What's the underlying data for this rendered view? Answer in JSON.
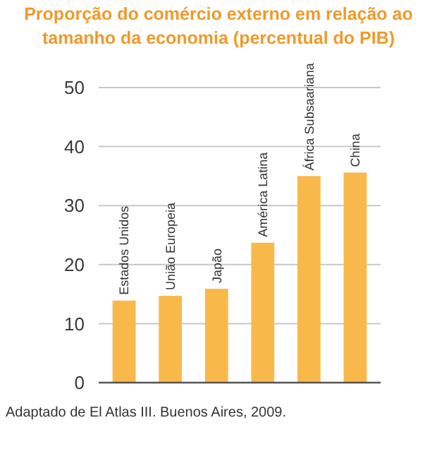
{
  "chart_data": {
    "type": "bar",
    "title": "Proporção do comércio externo em relação ao tamanho da economia (percentual do PIB)",
    "categories": [
      "Estados Unidos",
      "União Europeia",
      "Japão",
      "América Latina",
      "África Subsaariana",
      "China"
    ],
    "values": [
      13.9,
      14.7,
      15.9,
      23.7,
      35.0,
      35.6
    ],
    "color": "#f9b94a",
    "ylim": [
      0,
      50
    ],
    "yticks": [
      0,
      10,
      20,
      30,
      40,
      50
    ],
    "grid": "y",
    "annotations": [
      "Adaptado de El Atlas III. Buenos Aires, 2009."
    ]
  }
}
